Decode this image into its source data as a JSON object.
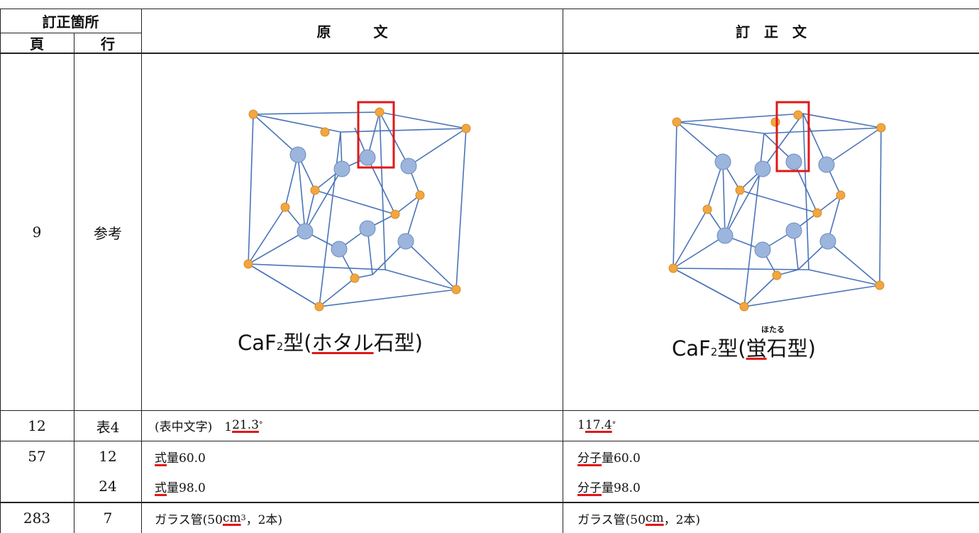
{
  "header": {
    "location": "訂正箇所",
    "page": "頁",
    "line": "行",
    "original": "原　　　文",
    "corrected": "訂　正　文"
  },
  "rows": [
    {
      "page": "9",
      "line": "参考",
      "original_caption": {
        "formula": "CaF",
        "sub": "2",
        "type": "型",
        "open": "(",
        "marked": "ホタル",
        "rest": "石型)"
      },
      "corrected_caption": {
        "formula": "CaF",
        "sub": "2",
        "type": "型",
        "open": "(",
        "marked": "蛍",
        "ruby": "ほたる",
        "rest": "石型)"
      }
    },
    {
      "page": "12",
      "line": "表4",
      "original": {
        "prefix": "(表中文字)　1",
        "marked": "21.3",
        "suffix": "°"
      },
      "corrected": {
        "prefix": "1",
        "marked": "17.4",
        "suffix": "°"
      }
    },
    {
      "page": "57",
      "line": "12",
      "original": {
        "marked": "式",
        "rest": "量60.0"
      },
      "corrected": {
        "marked": "分子",
        "rest": "量60.0"
      }
    },
    {
      "page": "",
      "line": "24",
      "original": {
        "marked": "式",
        "rest": "量98.0"
      },
      "corrected": {
        "marked": "分子",
        "rest": "量98.0"
      }
    },
    {
      "page": "283",
      "line": "7",
      "original": {
        "prefix": "ガラス管(50 ",
        "marked": "cm",
        "sup": "3",
        "suffix": "，2本)"
      },
      "corrected": {
        "prefix": "ガラス管(50 ",
        "marked": "cm",
        "suffix": "，2本)"
      }
    }
  ],
  "colors": {
    "correction_mark": "#e01818",
    "lattice_line": "#4a74b8",
    "cation": "#f2a640",
    "anion": "#9bb5dd"
  }
}
